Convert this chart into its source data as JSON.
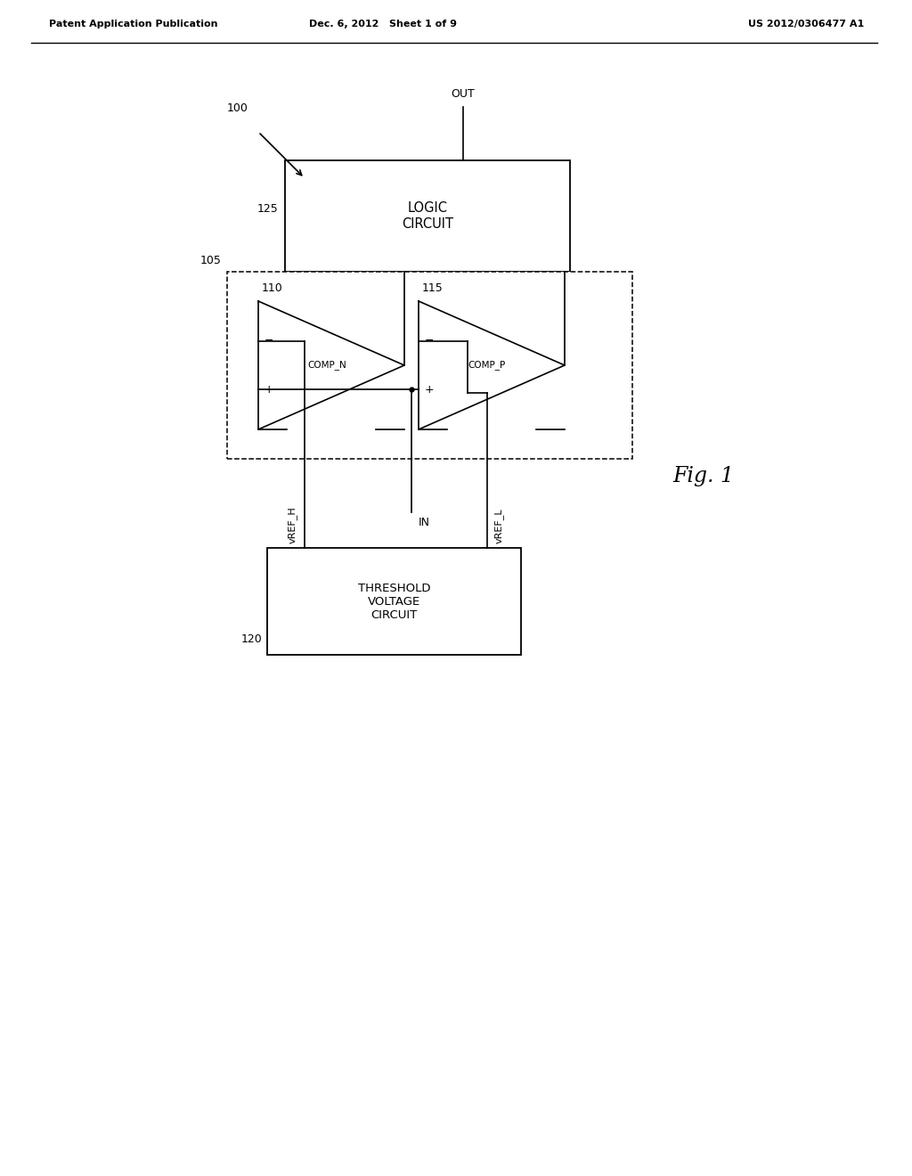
{
  "background_color": "#ffffff",
  "header_left": "Patent Application Publication",
  "header_mid": "Dec. 6, 2012   Sheet 1 of 9",
  "header_right": "US 2012/0306477 A1",
  "fig_label": "Fig. 1",
  "label_100": "100",
  "label_125": "125",
  "label_105": "105",
  "label_110": "110",
  "label_115": "115",
  "label_120": "120",
  "logic_box_text": "LOGIC\nCIRCUIT",
  "threshold_box_text": "THRESHOLD\nVOLTAGE\nCIRCUIT",
  "comp_n_text": "COMP_N",
  "comp_p_text": "COMP_P",
  "out_label": "OUT",
  "in_label": "IN",
  "vref_h_label": "vREF_H",
  "vref_l_label": "vREF_L",
  "page_width": 10.24,
  "page_height": 13.2
}
